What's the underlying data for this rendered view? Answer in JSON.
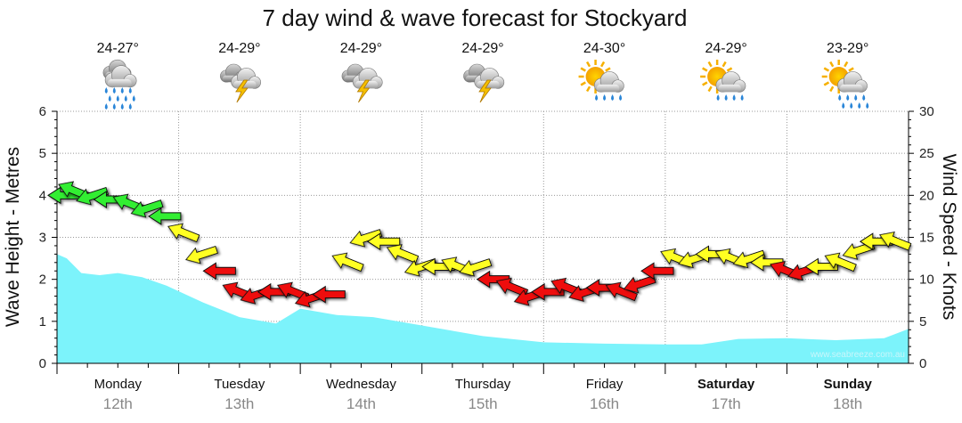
{
  "chart_data": {
    "type": "area",
    "title": "7 day wind & wave forecast for Stockyard",
    "ylabel_left": "Wave Height - Metres",
    "ylabel_right": "Wind Speed - Knots",
    "ylim_left": [
      0,
      6
    ],
    "ylim_right": [
      0,
      30
    ],
    "yticks_left": [
      "0",
      "1",
      "2",
      "3",
      "4",
      "5",
      "6"
    ],
    "yticks_right": [
      "0",
      "5",
      "10",
      "15",
      "20",
      "25",
      "30"
    ],
    "grid": true,
    "watermark": "www.seabreeze.com.au",
    "days": [
      {
        "name": "Monday",
        "date": "12th",
        "temp": "24-27°",
        "weather": "rain-cloud-icon",
        "bold": false
      },
      {
        "name": "Tuesday",
        "date": "13th",
        "temp": "24-29°",
        "weather": "thunderstorm-icon",
        "bold": false
      },
      {
        "name": "Wednesday",
        "date": "14th",
        "temp": "24-29°",
        "weather": "thunderstorm-icon",
        "bold": false
      },
      {
        "name": "Thursday",
        "date": "15th",
        "temp": "24-29°",
        "weather": "thunderstorm-icon",
        "bold": false
      },
      {
        "name": "Friday",
        "date": "16th",
        "temp": "24-30°",
        "weather": "sun-cloud-shower-icon",
        "bold": false
      },
      {
        "name": "Saturday",
        "date": "17th",
        "temp": "24-29°",
        "weather": "sun-cloud-shower-icon",
        "bold": true
      },
      {
        "name": "Sunday",
        "date": "18th",
        "temp": "23-29°",
        "weather": "sun-cloud-rain-icon",
        "bold": true
      }
    ],
    "wave_series": {
      "name": "Wave height",
      "x_days": [
        0,
        0.08,
        0.2,
        0.35,
        0.5,
        0.7,
        0.9,
        1.2,
        1.5,
        1.8,
        2.0,
        2.3,
        2.6,
        3.0,
        3.5,
        4.0,
        4.5,
        5.0,
        5.3,
        5.6,
        6.0,
        6.4,
        6.8,
        7.1
      ],
      "values": [
        2.6,
        2.5,
        2.15,
        2.1,
        2.15,
        2.05,
        1.85,
        1.45,
        1.1,
        0.95,
        1.3,
        1.15,
        1.1,
        0.9,
        0.65,
        0.5,
        0.47,
        0.45,
        0.45,
        0.58,
        0.6,
        0.55,
        0.6,
        0.82
      ]
    },
    "wind_series": {
      "name": "Wind speed",
      "x_days": [
        0,
        0.15,
        0.3,
        0.45,
        0.6,
        0.75,
        0.9,
        1.05,
        1.2,
        1.35,
        1.5,
        1.65,
        1.8,
        1.95,
        2.1,
        2.25,
        2.4,
        2.55,
        2.7,
        2.85,
        3.0,
        3.15,
        3.3,
        3.45,
        3.6,
        3.75,
        3.9,
        4.05,
        4.2,
        4.35,
        4.5,
        4.65,
        4.8,
        4.95,
        5.1,
        5.25,
        5.4,
        5.55,
        5.7,
        5.85,
        6.0,
        6.15,
        6.3,
        6.45,
        6.6,
        6.75,
        6.9,
        7.05
      ],
      "values": [
        20,
        20.5,
        20,
        19.5,
        19,
        18.5,
        17.5,
        15.5,
        13,
        11,
        8.5,
        8.2,
        8.5,
        8.5,
        7.8,
        8.2,
        12,
        15,
        14.5,
        13,
        11.5,
        11.5,
        11.5,
        11.5,
        10,
        9,
        8,
        8.5,
        9,
        8.5,
        9,
        8.5,
        9.5,
        11,
        12.5,
        12.5,
        13,
        12.5,
        12.5,
        12,
        11,
        11,
        11.5,
        12,
        13.5,
        14.5,
        14.5,
        13.5
      ],
      "colors": [
        "green",
        "green",
        "green",
        "green",
        "green",
        "green",
        "green",
        "yellow",
        "yellow",
        "red",
        "red",
        "red",
        "red",
        "red",
        "red",
        "red",
        "yellow",
        "yellow",
        "yellow",
        "yellow",
        "yellow",
        "yellow",
        "yellow",
        "yellow",
        "red",
        "red",
        "red",
        "red",
        "red",
        "red",
        "red",
        "red",
        "red",
        "red",
        "yellow",
        "yellow",
        "yellow",
        "yellow",
        "yellow",
        "yellow",
        "red",
        "red",
        "yellow",
        "yellow",
        "yellow",
        "yellow",
        "yellow",
        "yellow"
      ]
    },
    "colors": {
      "wave_fill": "#7cf3fb",
      "wind_green": "#33ee33",
      "wind_yellow": "#ffff22",
      "wind_red": "#ee1111",
      "grid": "#999999"
    }
  }
}
